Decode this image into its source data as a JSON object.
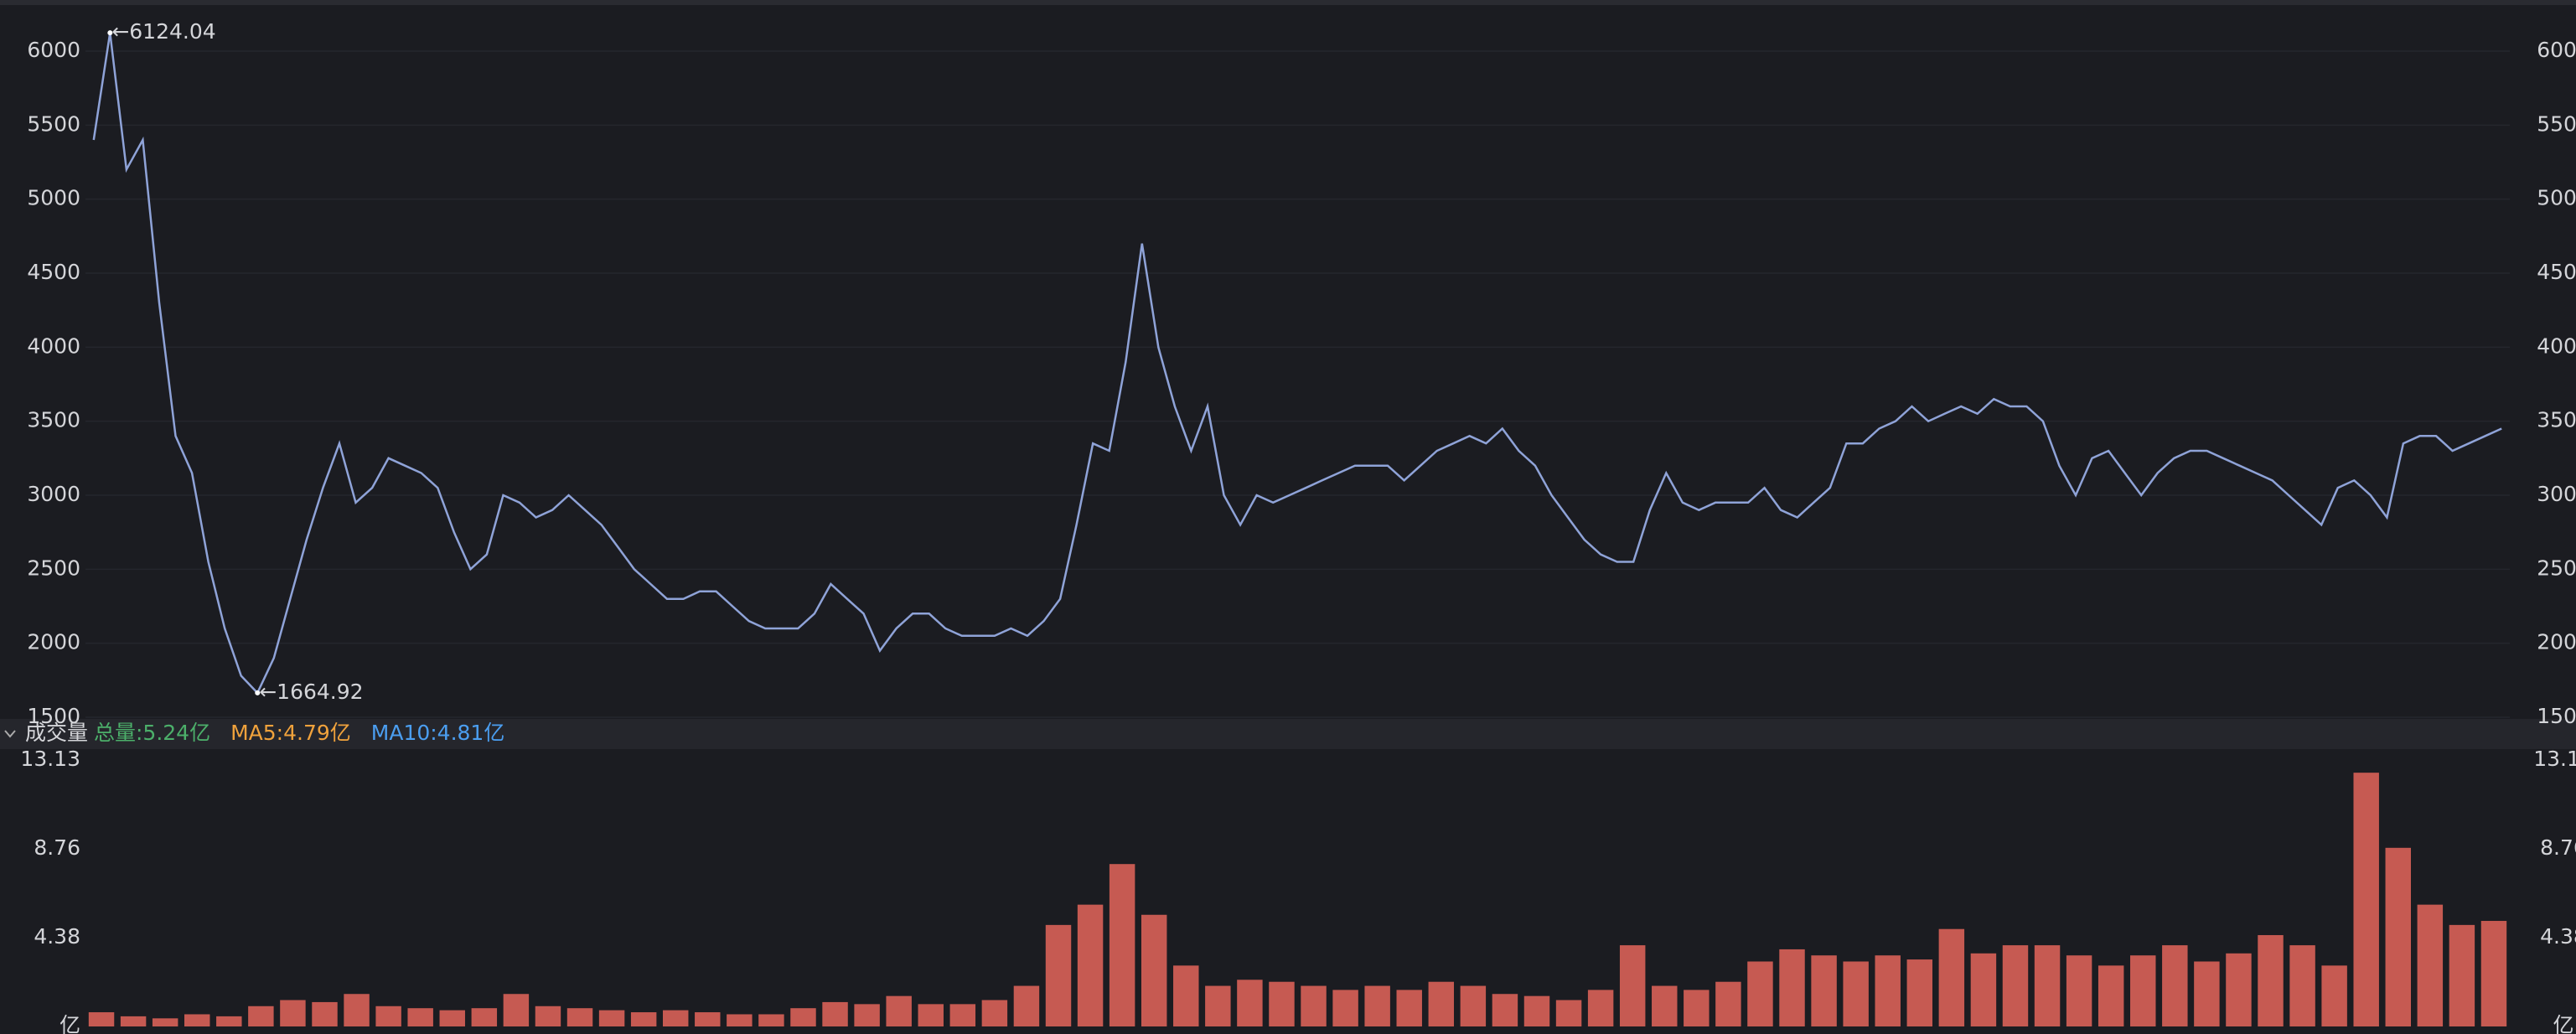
{
  "chart_data": [
    {
      "type": "line",
      "color": "#8fa3d8",
      "values": [
        5400,
        6124.04,
        5200,
        5400,
        4300,
        3400,
        3150,
        2550,
        2100,
        1780,
        1664.92,
        1900,
        2300,
        2700,
        3050,
        3350,
        2950,
        3050,
        3250,
        3200,
        3150,
        3050,
        2750,
        2500,
        2600,
        3000,
        2950,
        2850,
        2900,
        3000,
        2900,
        2800,
        2650,
        2500,
        2400,
        2300,
        2300,
        2350,
        2350,
        2250,
        2150,
        2100,
        2100,
        2100,
        2200,
        2400,
        2300,
        2200,
        1950,
        2100,
        2200,
        2200,
        2100,
        2050,
        2050,
        2050,
        2100,
        2050,
        2150,
        2300,
        2800,
        3350,
        3300,
        3900,
        4700,
        4000,
        3600,
        3300,
        3600,
        3000,
        2800,
        3000,
        2950,
        3000,
        3050,
        3100,
        3150,
        3200,
        3200,
        3200,
        3100,
        3200,
        3300,
        3350,
        3400,
        3350,
        3450,
        3300,
        3200,
        3000,
        2850,
        2700,
        2600,
        2550,
        2550,
        2900,
        3150,
        2950,
        2900,
        2950,
        2950,
        2950,
        3050,
        2900,
        2850,
        2950,
        3050,
        3350,
        3350,
        3450,
        3500,
        3600,
        3500,
        3550,
        3600,
        3550,
        3650,
        3600,
        3600,
        3500,
        3200,
        3000,
        3250,
        3300,
        3150,
        3000,
        3150,
        3250,
        3300,
        3300,
        3250,
        3200,
        3150,
        3100,
        3000,
        2900,
        2800,
        3050,
        3100,
        3000,
        2850,
        3350,
        3400,
        3400,
        3300,
        3350,
        3400,
        3450
      ],
      "ylim": [
        1500,
        6300
      ],
      "yticks": [
        1500,
        2000,
        2500,
        3000,
        3500,
        4000,
        4500,
        5000,
        5500,
        6000
      ],
      "grid": true,
      "annotations": [
        {
          "text": "←6124.04",
          "value": 6124.04
        },
        {
          "text": "←1664.92",
          "value": 1664.92
        }
      ]
    },
    {
      "type": "bar",
      "title": "成交量",
      "color": "#c65a52",
      "legend": [
        {
          "text": "总量:5.24亿",
          "color": "#4caf6a"
        },
        {
          "text": "MA5:4.79亿",
          "color": "#f0a23c"
        },
        {
          "text": "MA10:4.81亿",
          "color": "#4b9ef0"
        }
      ],
      "values": [
        0.7,
        0.5,
        0.4,
        0.6,
        0.5,
        1.0,
        1.3,
        1.2,
        1.6,
        1.0,
        0.9,
        0.8,
        0.9,
        1.6,
        1.0,
        0.9,
        0.8,
        0.7,
        0.8,
        0.7,
        0.6,
        0.6,
        0.9,
        1.2,
        1.1,
        1.5,
        1.1,
        1.1,
        1.3,
        2.0,
        5.0,
        6.0,
        8.0,
        5.5,
        3.0,
        2.0,
        2.3,
        2.2,
        2.0,
        1.8,
        2.0,
        1.8,
        2.2,
        2.0,
        1.6,
        1.5,
        1.3,
        1.8,
        4.0,
        2.0,
        1.8,
        2.2,
        3.2,
        3.8,
        3.5,
        3.2,
        3.5,
        3.3,
        4.8,
        3.6,
        4.0,
        4.0,
        3.5,
        3.0,
        3.5,
        4.0,
        3.2,
        3.6,
        4.5,
        4.0,
        3.0,
        12.5,
        8.8,
        6.0,
        5.0,
        5.2
      ],
      "ylim": [
        0,
        13.58
      ],
      "yticks": [
        {
          "value": 0,
          "label": "亿"
        },
        4.38,
        8.76,
        13.13
      ]
    }
  ]
}
